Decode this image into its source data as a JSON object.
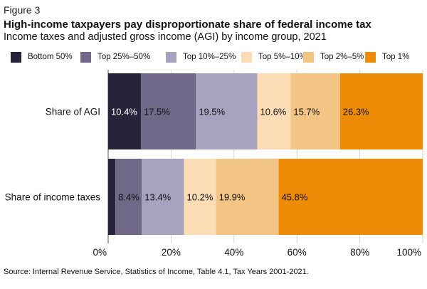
{
  "figure_label": "Figure 3",
  "chart_data": {
    "type": "bar",
    "orientation": "horizontal",
    "stacked": true,
    "title": "High-income taxpayers pay disproportionate share of federal income tax",
    "subtitle": "Income taxes and adjusted gross income (AGI) by income group, 2021",
    "categories": [
      "Share of AGI",
      "Share of income taxes"
    ],
    "series": [
      {
        "name": "Bottom 50%",
        "color": "#272338",
        "values": [
          10.4,
          2.3
        ],
        "labels": [
          "10.4%",
          ""
        ]
      },
      {
        "name": "Top 25%–50%",
        "color": "#706889",
        "values": [
          17.5,
          8.4
        ],
        "labels": [
          "17.5%",
          "8.4%"
        ]
      },
      {
        "name": "Top 10%–25%",
        "color": "#a7a3bf",
        "values": [
          19.5,
          13.4
        ],
        "labels": [
          "19.5%",
          "13.4%"
        ]
      },
      {
        "name": "Top 5%–10%",
        "color": "#fbdcb5",
        "values": [
          10.6,
          10.2
        ],
        "labels": [
          "10.6%",
          "10.2%"
        ]
      },
      {
        "name": "Top 2%–5%",
        "color": "#f3c585",
        "values": [
          15.7,
          19.9
        ],
        "labels": [
          "15.7%",
          "19.9%"
        ]
      },
      {
        "name": "Top 1%",
        "color": "#ee8c08",
        "values": [
          26.3,
          45.8
        ],
        "labels": [
          "26.3%",
          "45.8%"
        ]
      }
    ],
    "x_ticks": [
      "0%",
      "20%",
      "40%",
      "60%",
      "80%",
      "100%"
    ],
    "xlim": [
      0,
      100
    ],
    "grid": true,
    "legend_position": "top"
  },
  "source": "Source: Internal Revenue Service, Statistics of Income, Table 4.1, Tax Years 2001-2021."
}
